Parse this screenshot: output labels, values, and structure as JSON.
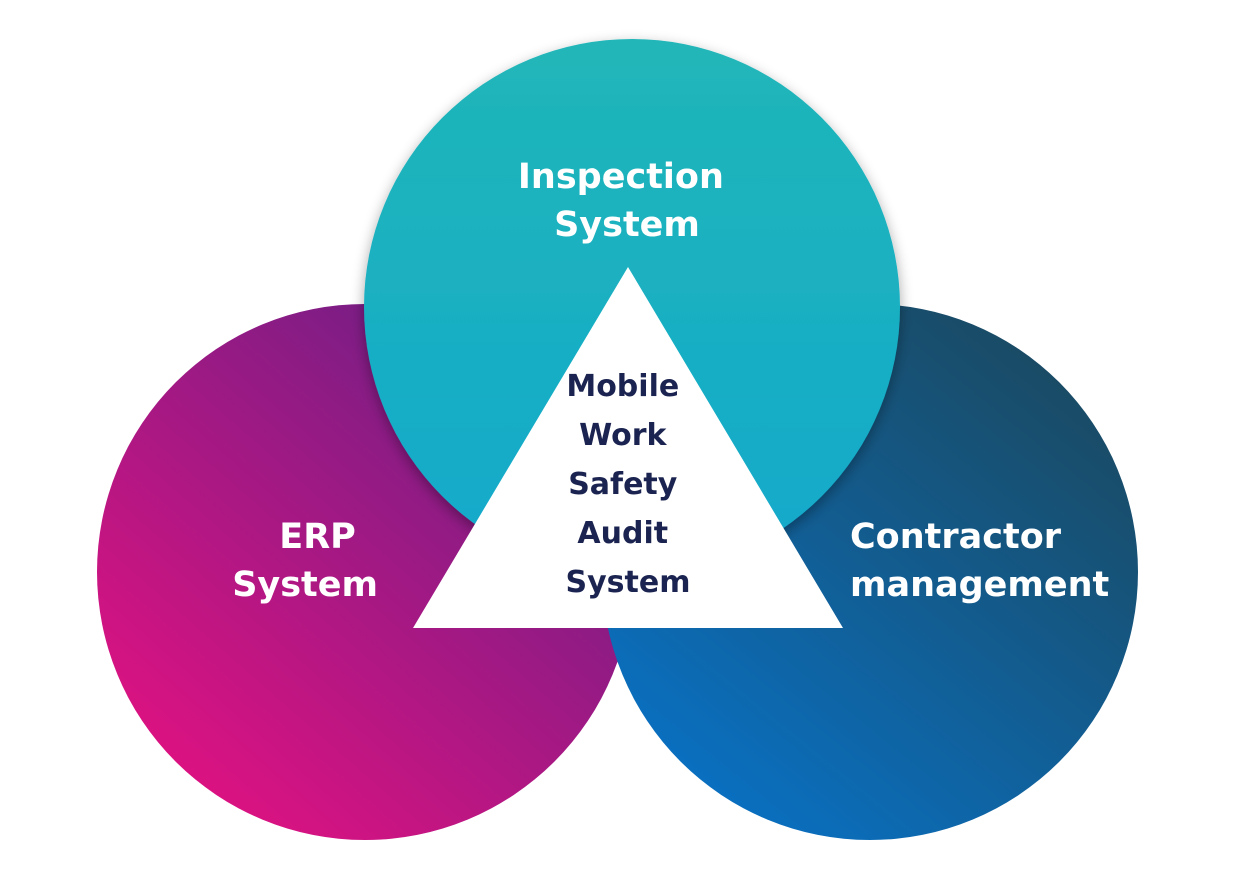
{
  "diagram": {
    "top_circle": {
      "line1": "Inspection",
      "line2": "System"
    },
    "left_circle": {
      "line1": "ERP",
      "line2": "System"
    },
    "right_circle": {
      "line1": "Contractor",
      "line2": "management"
    },
    "center_triangle": {
      "lines": [
        "Mobile",
        "Work",
        "Safety",
        "Audit",
        "System"
      ]
    }
  },
  "colors": {
    "top_circle_start": "#21b6b8",
    "top_circle_end": "#12a9cc",
    "left_circle_start": "#6b1f86",
    "left_circle_end": "#de1281",
    "right_circle_start": "#1a4a63",
    "right_circle_end": "#0a6fbf",
    "center_text": "#1b2450",
    "label_text": "#ffffff"
  }
}
